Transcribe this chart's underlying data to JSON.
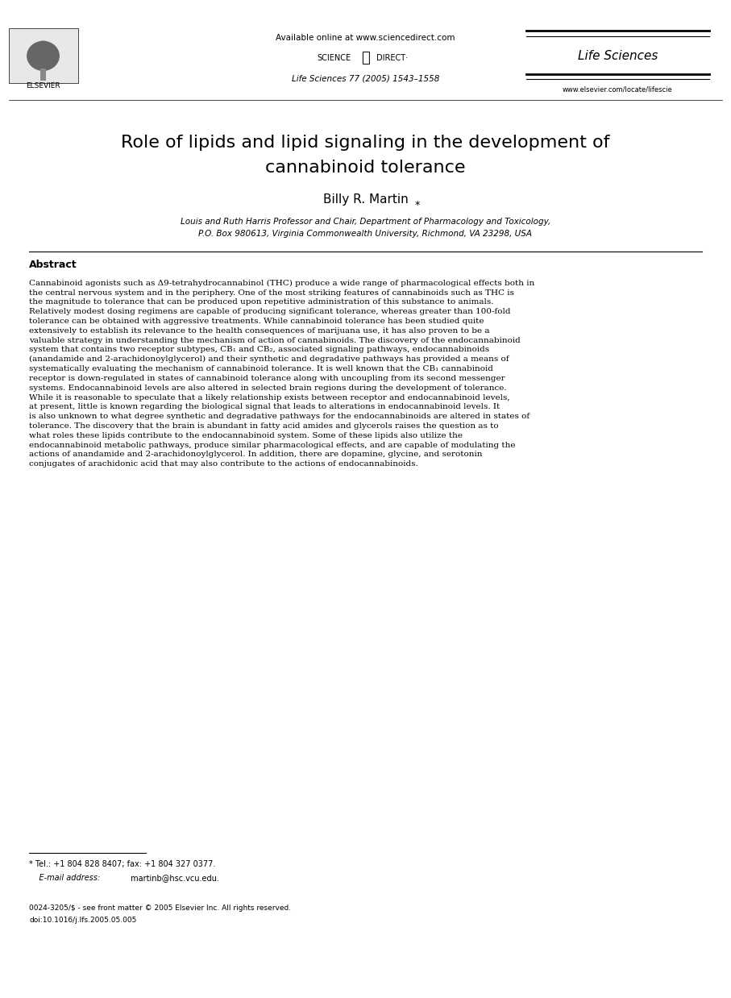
{
  "bg_color": "#ffffff",
  "header": {
    "available_online": "Available online at www.sciencedirect.com",
    "sciencedirect_text": "SCIENCE ⓓ DIRECT·",
    "journal_ref": "Life Sciences 77 (2005) 1543–1558",
    "journal_name": "Life Sciences",
    "website": "www.elsevier.com/locate/lifescie",
    "elsevier_text": "ELSEVIER"
  },
  "title": "Role of lipids and lipid signaling in the development of\ncannabinoid tolerance",
  "author": "Billy R. Martin*",
  "affiliation_line1": "Louis and Ruth Harris Professor and Chair, Department of Pharmacology and Toxicology,",
  "affiliation_line2": "P.O. Box 980613, Virginia Commonwealth University, Richmond, VA 23298, USA",
  "abstract_label": "Abstract",
  "abstract_text": "Cannabinoid agonists such as Δ9-tetrahydrocannabinol (THC) produce a wide range of pharmacological effects both in the central nervous system and in the periphery. One of the most striking features of cannabinoids such as THC is the magnitude to tolerance that can be produced upon repetitive administration of this substance to animals. Relatively modest dosing regimens are capable of producing significant tolerance, whereas greater than 100-fold tolerance can be obtained with aggressive treatments. While cannabinoid tolerance has been studied quite extensively to establish its relevance to the health consequences of marijuana use, it has also proven to be a valuable strategy in understanding the mechanism of action of cannabinoids. The discovery of the endocannabinoid system that contains two receptor subtypes, CB₁ and CB₂, associated signaling pathways, endocannabinoids (anandamide and 2-arachidonoylglycerol) and their synthetic and degradative pathways has provided a means of systematically evaluating the mechanism of cannabinoid tolerance. It is well known that the CB₁ cannabinoid receptor is down-regulated in states of cannabinoid tolerance along with uncoupling from its second messenger systems. Endocannabinoid levels are also altered in selected brain regions during the development of tolerance. While it is reasonable to speculate that a likely relationship exists between receptor and endocannabinoid levels, at present, little is known regarding the biological signal that leads to alterations in endocannabinoid levels. It is also unknown to what degree synthetic and degradative pathways for the endocannabinoids are altered in states of tolerance. The discovery that the brain is abundant in fatty acid amides and glycerols raises the question as to what roles these lipids contribute to the endocannabinoid system. Some of these lipids also utilize the endocannabinoid metabolic pathways, produce similar pharmacological effects, and are capable of modulating the actions of anandamide and 2-arachidonoylglycerol. In addition, there are dopamine, glycine, and serotonin conjugates of arachidonic acid that may also contribute to the actions of endocannabinoids.",
  "footnote_star": "* Tel.: +1 804 828 8407; fax: +1 804 327 0377.",
  "footnote_email_label": "E-mail address:",
  "footnote_email": "martinb@hsc.vcu.edu.",
  "copyright_line1": "0024-3205/$ - see front matter © 2005 Elsevier Inc. All rights reserved.",
  "copyright_line2": "doi:10.1016/j.lfs.2005.05.005"
}
